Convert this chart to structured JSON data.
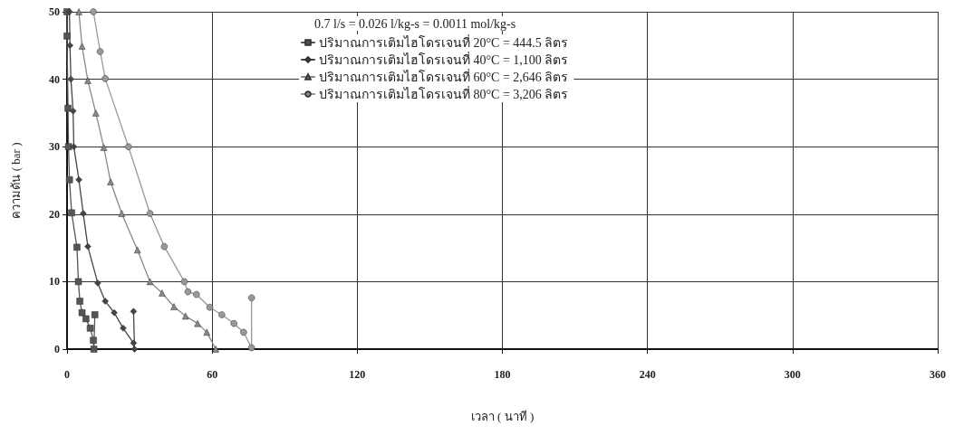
{
  "chart_data": {
    "type": "line",
    "xlabel": "เวลา ( นาที )",
    "ylabel": "ความดัน ( bar )",
    "annotations": [
      "0.7 l/s = 0.026 l/kg-s = 0.0011 mol/kg-s"
    ],
    "xlim": [
      0,
      360
    ],
    "xticks": [
      0,
      60,
      120,
      180,
      240,
      300,
      360
    ],
    "ylim": [
      0,
      50
    ],
    "yticks": [
      0,
      10,
      20,
      30,
      40,
      50
    ],
    "grid": true,
    "legend": "top",
    "line_style": "solid",
    "series": [
      {
        "name": "ปริมาณการเติมไฮโดรเจนที่ 20°C = 444.5 ลิตร",
        "color": "#555555",
        "marker": "square",
        "x": [
          0,
          0,
          0.4,
          0.6,
          1,
          1.9,
          4.1,
          4.7,
          5.3,
          6.2,
          7.8,
          9.6,
          10.9,
          11.1,
          11.5
        ],
        "values": [
          50,
          46.4,
          35.7,
          30,
          25.1,
          20.2,
          15.1,
          10,
          7.1,
          5.4,
          4.5,
          3.1,
          1.3,
          0,
          5.1
        ]
      },
      {
        "name": "ปริมาณการเติมไฮโดรเจนที่ 40°C = 1,100 ลิตร",
        "color": "#444444",
        "marker": "diamond",
        "x": [
          1,
          1.2,
          1.6,
          2.5,
          2.8,
          4.9,
          6.7,
          8.6,
          12.7,
          15.8,
          19.5,
          23.2,
          27.5,
          27.9,
          27.5
        ],
        "values": [
          50,
          45,
          40,
          35.3,
          30,
          25.1,
          20.1,
          15.2,
          9.8,
          7.1,
          5.4,
          3.1,
          0.9,
          0,
          5.6
        ]
      },
      {
        "name": "ปริมาณการเติมไฮโดรเจนที่ 60°C = 2,646 ลิตร",
        "color": "#888888",
        "marker": "triangle",
        "x": [
          4.9,
          6.2,
          8.6,
          11.9,
          15.2,
          18,
          22.6,
          29.1,
          34.3,
          39.3,
          44.2,
          49,
          54,
          57.8,
          61.5
        ],
        "values": [
          50,
          44.9,
          39.8,
          35,
          29.9,
          24.8,
          20.1,
          14.7,
          10,
          8.3,
          6.3,
          4.9,
          3.8,
          2.5,
          0
        ]
      },
      {
        "name": "ปริมาณการเติมไฮโดรเจนที่ 80°C = 3,206 ลิตร",
        "color": "#999999",
        "marker": "circle",
        "x": [
          10.9,
          13.7,
          15.8,
          25.4,
          34.3,
          40.2,
          48.5,
          50,
          53.5,
          59,
          64,
          69,
          73,
          76.3,
          76.3
        ],
        "values": [
          50,
          44.1,
          40.1,
          30,
          20.1,
          15.2,
          10,
          8.5,
          8.1,
          6.2,
          5.1,
          3.8,
          2.5,
          0.2,
          7.6
        ]
      }
    ]
  }
}
